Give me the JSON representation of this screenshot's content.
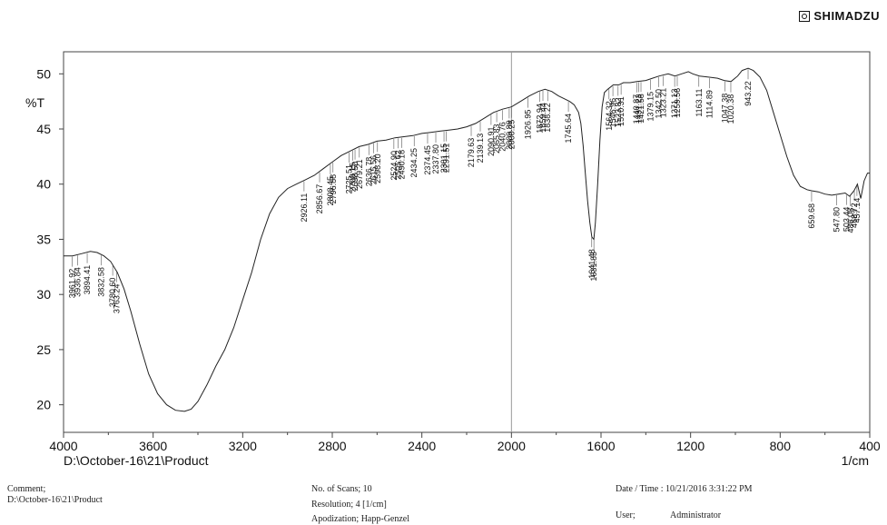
{
  "brand": "SHIMADZU",
  "footer": {
    "comment_label": "Comment;",
    "comment_value": "D:\\October-16\\21\\Product",
    "scans": "No. of Scans; 10",
    "resolution": "Resolution;   4 [1/cm]",
    "apodization": "Apodization;   Happ-Genzel",
    "datetime": "Date / Time : 10/21/2016 3:31:22 PM",
    "user_label": "User;",
    "user_value": "Administrator"
  },
  "chart_data": {
    "type": "line",
    "title": "",
    "file_label": "D:\\October-16\\21\\Product",
    "ylabel": "%T",
    "xlabel": "1/cm",
    "xlim": [
      4000,
      400
    ],
    "ylim": [
      17.5,
      52
    ],
    "x_ticks": [
      4000,
      3600,
      3200,
      2800,
      2400,
      2000,
      1600,
      1200,
      800,
      400
    ],
    "x_tick_labels": [
      "4000",
      "3600",
      "3200",
      "2800",
      "2400",
      "2000",
      "1600",
      "1200",
      "800",
      "400"
    ],
    "y_ticks": [
      20,
      25,
      30,
      35,
      40,
      45,
      50
    ],
    "y_tick_labels": [
      "20",
      "25",
      "30",
      "35",
      "40",
      "45",
      "50"
    ],
    "grid": false,
    "series": [
      {
        "points": [
          [
            4000,
            33.5
          ],
          [
            3960,
            33.5
          ],
          [
            3920,
            33.7
          ],
          [
            3880,
            33.9
          ],
          [
            3850,
            33.8
          ],
          [
            3820,
            33.5
          ],
          [
            3790,
            33.0
          ],
          [
            3760,
            32.0
          ],
          [
            3730,
            30.5
          ],
          [
            3700,
            28.5
          ],
          [
            3660,
            25.5
          ],
          [
            3620,
            22.8
          ],
          [
            3580,
            21.0
          ],
          [
            3540,
            20.0
          ],
          [
            3500,
            19.5
          ],
          [
            3460,
            19.4
          ],
          [
            3430,
            19.6
          ],
          [
            3400,
            20.3
          ],
          [
            3360,
            21.8
          ],
          [
            3320,
            23.5
          ],
          [
            3280,
            25.0
          ],
          [
            3240,
            27.0
          ],
          [
            3200,
            29.5
          ],
          [
            3160,
            32.0
          ],
          [
            3120,
            35.0
          ],
          [
            3080,
            37.3
          ],
          [
            3040,
            38.8
          ],
          [
            3000,
            39.6
          ],
          [
            2960,
            40.0
          ],
          [
            2920,
            40.4
          ],
          [
            2880,
            40.8
          ],
          [
            2840,
            41.4
          ],
          [
            2800,
            42.0
          ],
          [
            2760,
            42.6
          ],
          [
            2720,
            43.0
          ],
          [
            2680,
            43.4
          ],
          [
            2640,
            43.6
          ],
          [
            2600,
            43.9
          ],
          [
            2560,
            44.0
          ],
          [
            2520,
            44.2
          ],
          [
            2480,
            44.3
          ],
          [
            2440,
            44.4
          ],
          [
            2400,
            44.6
          ],
          [
            2360,
            44.7
          ],
          [
            2320,
            44.8
          ],
          [
            2280,
            44.9
          ],
          [
            2240,
            45.0
          ],
          [
            2200,
            45.2
          ],
          [
            2160,
            45.5
          ],
          [
            2120,
            46.0
          ],
          [
            2080,
            46.5
          ],
          [
            2040,
            46.8
          ],
          [
            2000,
            47.0
          ],
          [
            1960,
            47.5
          ],
          [
            1920,
            48.0
          ],
          [
            1880,
            48.4
          ],
          [
            1850,
            48.6
          ],
          [
            1820,
            48.4
          ],
          [
            1790,
            48.0
          ],
          [
            1760,
            47.7
          ],
          [
            1740,
            47.5
          ],
          [
            1720,
            47.2
          ],
          [
            1700,
            46.5
          ],
          [
            1690,
            45.5
          ],
          [
            1680,
            43.5
          ],
          [
            1670,
            41.0
          ],
          [
            1660,
            38.5
          ],
          [
            1650,
            36.5
          ],
          [
            1641,
            35.2
          ],
          [
            1632,
            35.0
          ],
          [
            1625,
            36.5
          ],
          [
            1615,
            40.0
          ],
          [
            1605,
            44.0
          ],
          [
            1595,
            47.0
          ],
          [
            1585,
            48.3
          ],
          [
            1570,
            48.6
          ],
          [
            1545,
            49.0
          ],
          [
            1520,
            49.0
          ],
          [
            1500,
            49.2
          ],
          [
            1470,
            49.2
          ],
          [
            1440,
            49.3
          ],
          [
            1400,
            49.4
          ],
          [
            1370,
            49.6
          ],
          [
            1340,
            49.8
          ],
          [
            1300,
            50.0
          ],
          [
            1270,
            49.8
          ],
          [
            1240,
            50.0
          ],
          [
            1210,
            50.2
          ],
          [
            1190,
            50.0
          ],
          [
            1160,
            49.8
          ],
          [
            1120,
            49.7
          ],
          [
            1080,
            49.6
          ],
          [
            1050,
            49.4
          ],
          [
            1020,
            49.3
          ],
          [
            990,
            49.8
          ],
          [
            970,
            50.3
          ],
          [
            943,
            50.5
          ],
          [
            920,
            50.3
          ],
          [
            890,
            49.7
          ],
          [
            860,
            48.5
          ],
          [
            830,
            46.5
          ],
          [
            800,
            44.5
          ],
          [
            770,
            42.5
          ],
          [
            740,
            40.8
          ],
          [
            710,
            39.8
          ],
          [
            680,
            39.5
          ],
          [
            660,
            39.4
          ],
          [
            630,
            39.3
          ],
          [
            600,
            39.1
          ],
          [
            570,
            39.0
          ],
          [
            540,
            39.1
          ],
          [
            510,
            39.2
          ],
          [
            490,
            38.9
          ],
          [
            470,
            39.4
          ],
          [
            455,
            40.0
          ],
          [
            440,
            38.7
          ],
          [
            425,
            40.3
          ],
          [
            410,
            41.0
          ],
          [
            400,
            41.0
          ]
        ]
      }
    ],
    "peaks": [
      {
        "x": 3961.92,
        "label": "3961.92"
      },
      {
        "x": 3936.84,
        "label": "3936.84"
      },
      {
        "x": 3894.41,
        "label": "3894.41"
      },
      {
        "x": 3832.58,
        "label": "3832.58"
      },
      {
        "x": 3780.6,
        "label": "3780.60"
      },
      {
        "x": 3763.24,
        "label": "3763.24"
      },
      {
        "x": 2926.11,
        "label": "2926.11"
      },
      {
        "x": 2856.67,
        "label": "2856.67"
      },
      {
        "x": 2808.45,
        "label": "2808.45"
      },
      {
        "x": 2796.88,
        "label": "2796.88"
      },
      {
        "x": 2725.51,
        "label": "2725.51"
      },
      {
        "x": 2708.15,
        "label": "2708.15"
      },
      {
        "x": 2698.5,
        "label": "2698.50"
      },
      {
        "x": 2679.21,
        "label": "2679.21"
      },
      {
        "x": 2636.78,
        "label": "2636.78"
      },
      {
        "x": 2615.56,
        "label": "2615.56"
      },
      {
        "x": 2598.2,
        "label": "2598.20"
      },
      {
        "x": 2524.9,
        "label": "2524.90"
      },
      {
        "x": 2505.62,
        "label": "2505.62"
      },
      {
        "x": 2490.18,
        "label": "2490.18"
      },
      {
        "x": 2434.25,
        "label": "2434.25"
      },
      {
        "x": 2374.45,
        "label": "2374.45"
      },
      {
        "x": 2337.8,
        "label": "2337.80"
      },
      {
        "x": 2301.15,
        "label": "2301.15"
      },
      {
        "x": 2291.51,
        "label": "2291.51"
      },
      {
        "x": 2179.63,
        "label": "2179.63"
      },
      {
        "x": 2139.13,
        "label": "2139.13"
      },
      {
        "x": 2090.91,
        "label": "2090.91"
      },
      {
        "x": 2065.83,
        "label": "2065.83"
      },
      {
        "x": 2040.76,
        "label": "2040.76"
      },
      {
        "x": 2009.89,
        "label": "2009.89"
      },
      {
        "x": 2000.25,
        "label": "2000.25"
      },
      {
        "x": 1926.95,
        "label": "1926.95"
      },
      {
        "x": 1872.94,
        "label": "1872.94"
      },
      {
        "x": 1859.44,
        "label": "1859.44"
      },
      {
        "x": 1838.22,
        "label": "1838.22"
      },
      {
        "x": 1745.64,
        "label": "1745.64"
      },
      {
        "x": 1641.48,
        "label": "1641.48"
      },
      {
        "x": 1631.83,
        "label": "1631.83"
      },
      {
        "x": 1564.32,
        "label": "1564.32"
      },
      {
        "x": 1546.96,
        "label": "1546.96"
      },
      {
        "x": 1523.82,
        "label": "1523.82"
      },
      {
        "x": 1510.31,
        "label": "1510.31"
      },
      {
        "x": 1440.87,
        "label": "1440.87"
      },
      {
        "x": 1431.23,
        "label": "1431.23"
      },
      {
        "x": 1421.58,
        "label": "1421.58"
      },
      {
        "x": 1379.15,
        "label": "1379.15"
      },
      {
        "x": 1342.5,
        "label": "1342.50"
      },
      {
        "x": 1323.21,
        "label": "1323.21"
      },
      {
        "x": 1271.13,
        "label": "1271.13"
      },
      {
        "x": 1259.56,
        "label": "1259.56"
      },
      {
        "x": 1163.11,
        "label": "1163.11"
      },
      {
        "x": 1114.89,
        "label": "1114.89"
      },
      {
        "x": 1047.38,
        "label": "1047.38"
      },
      {
        "x": 1020.38,
        "label": "1020.38"
      },
      {
        "x": 943.22,
        "label": "943.22"
      },
      {
        "x": 659.68,
        "label": "659.68"
      },
      {
        "x": 547.8,
        "label": "547.80"
      },
      {
        "x": 503.44,
        "label": "503.44"
      },
      {
        "x": 486.08,
        "label": "486.08"
      },
      {
        "x": 468.72,
        "label": "468.72"
      },
      {
        "x": 457.14,
        "label": "457.14"
      }
    ]
  }
}
